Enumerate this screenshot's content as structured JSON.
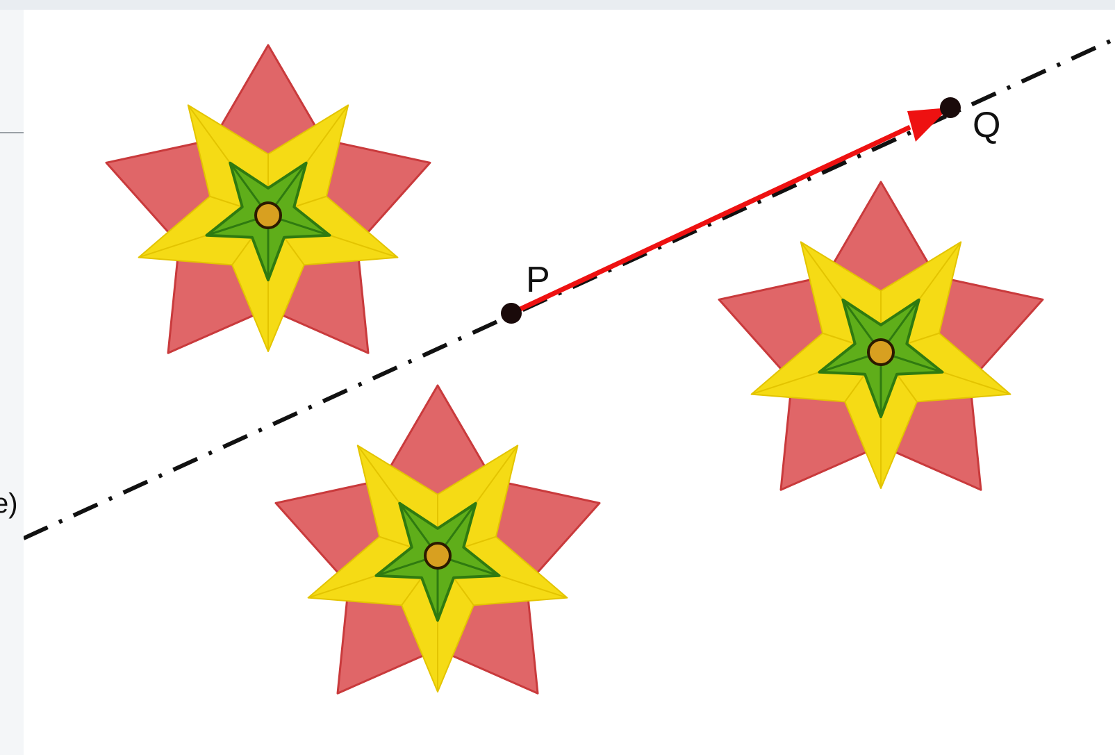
{
  "sidebar": {
    "item_fragment": "e)"
  },
  "graphics": {
    "point_p_label": "P",
    "point_q_label": "Q",
    "vector_color": "#ee1111",
    "line_style": "dash-dot",
    "pentagon_fill": "#e06668",
    "pentagon_stroke": "#c93a3c",
    "star_fill": "#f5db15",
    "inner_star_fill": "#5fae1a",
    "center_fill": "#d8a020"
  }
}
